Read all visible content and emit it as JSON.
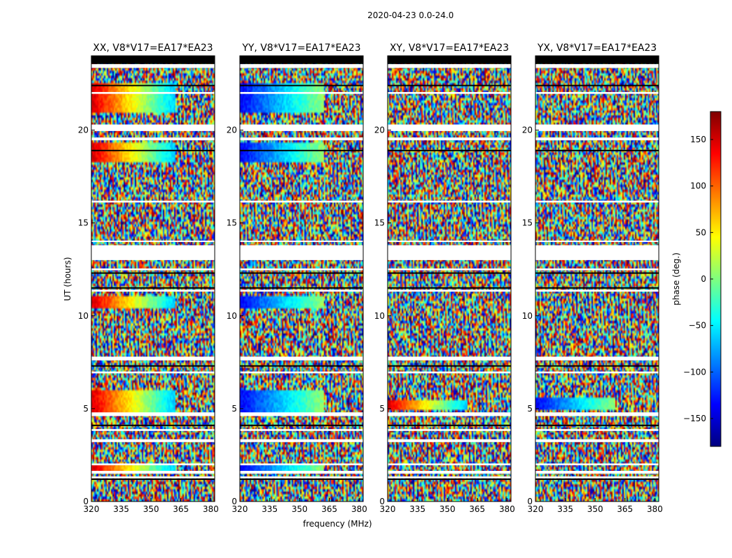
{
  "figure": {
    "suptitle": "2020-04-23 0.0-24.0",
    "ylabel": "UT (hours)",
    "xlabel": "frequency (MHz)"
  },
  "colorbar": {
    "label": "phase (deg.)",
    "ticks": [
      150,
      100,
      50,
      0,
      -50,
      -100,
      -150
    ],
    "tick_labels": [
      "150",
      "100",
      "50",
      "0",
      "−50",
      "−100",
      "−150"
    ],
    "range": [
      -180,
      180
    ],
    "colormap": "jet",
    "colors": [
      "#00007f",
      "#0000ff",
      "#007fff",
      "#00ffff",
      "#7fff7f",
      "#ffff00",
      "#ff7f00",
      "#ff0000",
      "#7f0000"
    ]
  },
  "chart_data": [
    {
      "type": "heatmap",
      "title": "XX, V8*V17=EA17*EA23",
      "xlim": [
        320,
        382
      ],
      "ylim": [
        0,
        24
      ],
      "xticks": [
        320,
        335,
        350,
        365,
        380
      ],
      "xtick_labels": [
        "320",
        "335",
        "350",
        "365",
        "380"
      ],
      "yticks": [
        0,
        5,
        10,
        15,
        20
      ],
      "ytick_labels": [
        "0",
        "5",
        "10",
        "15",
        "20"
      ],
      "coherent_bands": [
        {
          "ut": [
            21.0,
            22.5
          ],
          "freq_end": 362
        },
        {
          "ut": [
            18.3,
            19.3
          ],
          "freq_end": 362
        },
        {
          "ut": [
            10.4,
            11.0
          ],
          "freq_end": 362
        },
        {
          "ut": [
            4.7,
            6.0
          ],
          "freq_end": 362
        },
        {
          "ut": [
            1.6,
            2.0
          ],
          "freq_end": 362
        }
      ]
    },
    {
      "type": "heatmap",
      "title": "YY, V8*V17=EA17*EA23",
      "xlim": [
        320,
        382
      ],
      "ylim": [
        0,
        24
      ],
      "xticks": [
        320,
        335,
        350,
        365,
        380
      ],
      "xtick_labels": [
        "320",
        "335",
        "350",
        "365",
        "380"
      ],
      "yticks": [
        0,
        5,
        10,
        15,
        20
      ],
      "ytick_labels": [
        "0",
        "5",
        "10",
        "15",
        "20"
      ],
      "coherent_bands": [
        {
          "ut": [
            21.0,
            22.5
          ],
          "freq_end": 362
        },
        {
          "ut": [
            18.3,
            19.3
          ],
          "freq_end": 362
        },
        {
          "ut": [
            10.4,
            11.0
          ],
          "freq_end": 362
        },
        {
          "ut": [
            4.7,
            6.0
          ],
          "freq_end": 362
        },
        {
          "ut": [
            1.6,
            2.0
          ],
          "freq_end": 362
        }
      ]
    },
    {
      "type": "heatmap",
      "title": "XY, V8*V17=EA17*EA23",
      "xlim": [
        320,
        382
      ],
      "ylim": [
        0,
        24
      ],
      "xticks": [
        320,
        335,
        350,
        365,
        380
      ],
      "xtick_labels": [
        "320",
        "335",
        "350",
        "365",
        "380"
      ],
      "yticks": [
        0,
        5,
        10,
        15,
        20
      ],
      "ytick_labels": [
        "0",
        "5",
        "10",
        "15",
        "20"
      ],
      "coherent_bands": [
        {
          "ut": [
            5.0,
            5.5
          ],
          "freq_end": 360
        }
      ]
    },
    {
      "type": "heatmap",
      "title": "YX, V8*V17=EA17*EA23",
      "xlim": [
        320,
        382
      ],
      "ylim": [
        0,
        24
      ],
      "xticks": [
        320,
        335,
        350,
        365,
        380
      ],
      "xtick_labels": [
        "320",
        "335",
        "350",
        "365",
        "380"
      ],
      "yticks": [
        0,
        5,
        10,
        15,
        20
      ],
      "ytick_labels": [
        "0",
        "5",
        "10",
        "15",
        "20"
      ],
      "coherent_bands": [
        {
          "ut": [
            5.0,
            5.6
          ],
          "freq_end": 360
        }
      ]
    }
  ],
  "flagged_gaps_ut": [
    [
      23.35,
      23.55
    ],
    [
      21.95,
      22.05
    ],
    [
      19.95,
      20.3
    ],
    [
      19.45,
      19.6
    ],
    [
      16.1,
      16.2
    ],
    [
      14.0,
      14.05
    ],
    [
      13.0,
      13.8
    ],
    [
      12.45,
      12.55
    ],
    [
      11.3,
      11.4
    ],
    [
      7.6,
      7.8
    ],
    [
      6.9,
      7.0
    ],
    [
      4.6,
      4.8
    ],
    [
      3.8,
      3.9
    ],
    [
      3.2,
      3.35
    ],
    [
      1.95,
      2.05
    ],
    [
      1.5,
      1.65
    ],
    [
      1.25,
      1.35
    ]
  ],
  "black_lines_ut": [
    23.9,
    23.6,
    22.4,
    18.9,
    12.3,
    11.5,
    7.3,
    4.1,
    1.2
  ]
}
